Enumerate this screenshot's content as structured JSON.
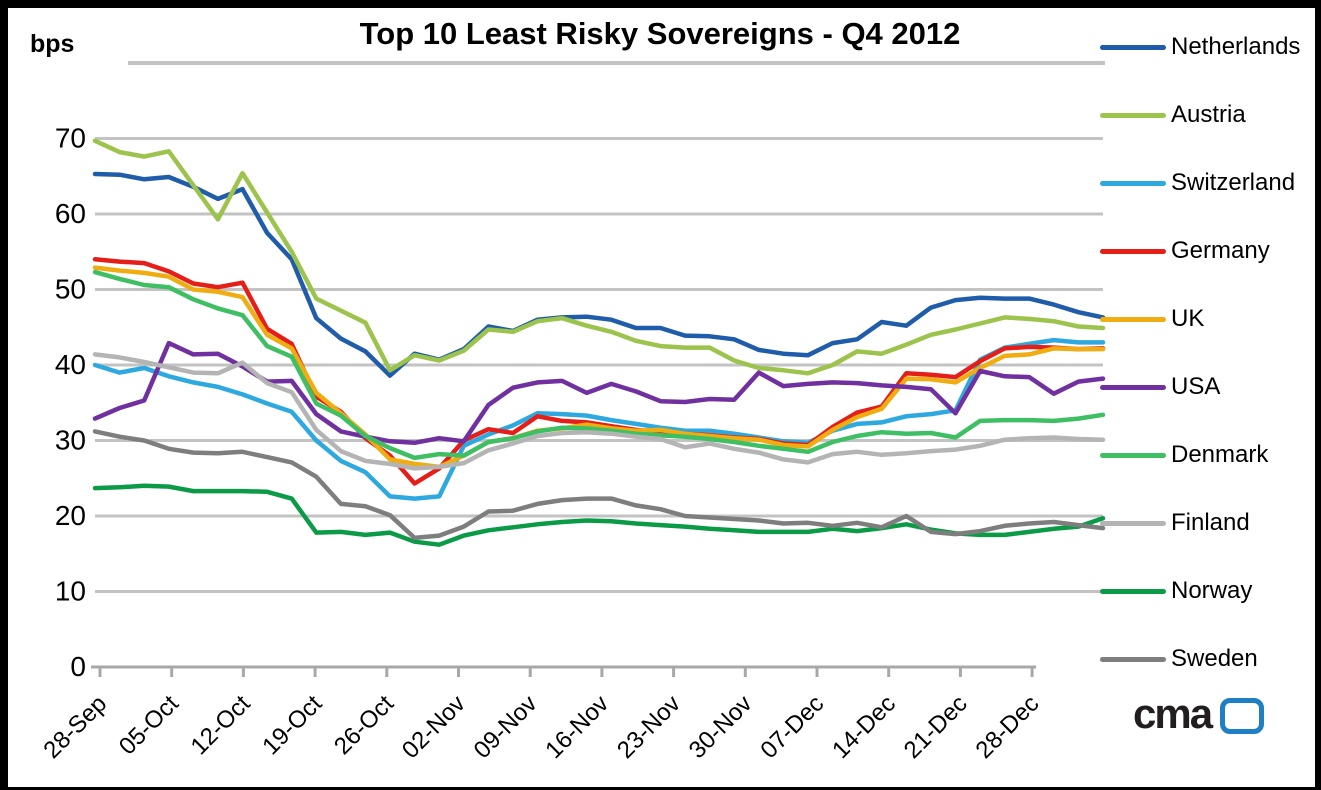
{
  "header": {
    "title": "Top 10 Least Risky Sovereigns - Q4 2012",
    "y_axis_unit": "bps"
  },
  "watermark": {
    "text": "cma",
    "box_color": "#1f7fc4",
    "text_color": "#221e1f"
  },
  "chart_data": {
    "type": "line",
    "title": "Top 10 Least Risky Sovereigns - Q4 2012",
    "ylabel": "bps",
    "xlabel": "",
    "ylim": [
      0,
      70
    ],
    "y_ticks": [
      0,
      10,
      20,
      30,
      40,
      50,
      60,
      70
    ],
    "x_tick_labels": [
      "28-Sep",
      "05-Oct",
      "12-Oct",
      "19-Oct",
      "26-Oct",
      "02-Nov",
      "09-Nov",
      "16-Nov",
      "23-Nov",
      "30-Nov",
      "07-Dec",
      "14-Dec",
      "21-Dec",
      "28-Dec"
    ],
    "grid": true,
    "legend_position": "right",
    "grid_color": "#c3c3c3",
    "axis_color": "#a8a8a8",
    "series": [
      {
        "name": "Netherlands",
        "color": "#1f5ca9",
        "values": [
          65.3,
          65.2,
          64.6,
          64.9,
          63.6,
          62.0,
          63.3,
          57.5,
          54.0,
          46.2,
          43.5,
          41.8,
          38.6,
          41.5,
          40.7,
          42.1,
          45.1,
          44.5,
          46.0,
          46.3,
          46.4,
          46.0,
          44.9,
          44.9,
          43.9,
          43.8,
          43.4,
          42.0,
          41.5,
          41.3,
          42.9,
          43.4,
          45.7,
          45.2,
          47.6,
          48.6,
          48.9,
          48.8,
          48.8,
          48.0,
          47.0,
          46.3
        ]
      },
      {
        "name": "Austria",
        "color": "#9cc34b",
        "values": [
          69.7,
          68.2,
          67.6,
          68.3,
          63.8,
          59.3,
          65.4,
          60.2,
          55.0,
          48.8,
          47.2,
          45.6,
          39.3,
          41.3,
          40.6,
          41.9,
          44.7,
          44.4,
          45.8,
          46.2,
          45.2,
          44.4,
          43.2,
          42.5,
          42.3,
          42.3,
          40.6,
          39.6,
          39.3,
          38.9,
          40.0,
          41.8,
          41.5,
          42.7,
          44.0,
          44.7,
          45.5,
          46.3,
          46.1,
          45.8,
          45.1,
          44.9
        ]
      },
      {
        "name": "Switzerland",
        "color": "#2ea9df",
        "values": [
          40.0,
          39.0,
          39.6,
          38.5,
          37.7,
          37.1,
          36.1,
          34.9,
          33.8,
          30.0,
          27.3,
          25.8,
          22.6,
          22.3,
          22.6,
          29.3,
          30.8,
          32.0,
          33.6,
          33.5,
          33.3,
          32.7,
          32.2,
          31.7,
          31.3,
          31.3,
          30.9,
          30.4,
          29.9,
          29.7,
          31.3,
          32.2,
          32.4,
          33.2,
          33.5,
          34.0,
          40.7,
          42.3,
          42.8,
          43.3,
          43.0,
          43.0
        ]
      },
      {
        "name": "Germany",
        "color": "#e41f1a",
        "values": [
          54.0,
          53.7,
          53.5,
          52.4,
          50.8,
          50.3,
          50.9,
          44.8,
          42.8,
          35.8,
          33.8,
          30.3,
          28.0,
          24.3,
          26.3,
          30.0,
          31.5,
          31.0,
          33.2,
          32.6,
          32.4,
          31.9,
          31.4,
          31.1,
          30.9,
          30.7,
          30.4,
          30.2,
          29.6,
          29.4,
          31.8,
          33.7,
          34.5,
          38.9,
          38.7,
          38.4,
          40.5,
          42.2,
          42.4,
          42.3,
          42.1,
          42.2
        ]
      },
      {
        "name": "UK",
        "color": "#f0ad12",
        "values": [
          52.9,
          52.5,
          52.2,
          51.7,
          50.0,
          49.7,
          49.0,
          44.0,
          42.2,
          36.3,
          33.6,
          30.8,
          27.5,
          26.9,
          26.5,
          28.0,
          29.8,
          30.3,
          31.3,
          31.6,
          32.1,
          31.6,
          31.3,
          31.4,
          30.9,
          30.6,
          30.3,
          30.1,
          29.4,
          29.2,
          31.4,
          33.1,
          34.2,
          38.2,
          38.1,
          37.7,
          39.6,
          41.2,
          41.4,
          42.2,
          42.1,
          42.1
        ]
      },
      {
        "name": "USA",
        "color": "#7030a0",
        "values": [
          32.9,
          34.3,
          35.3,
          42.9,
          41.4,
          41.5,
          39.8,
          37.8,
          37.9,
          33.5,
          31.2,
          30.5,
          29.9,
          29.7,
          30.3,
          29.9,
          34.7,
          37.0,
          37.7,
          37.9,
          36.3,
          37.5,
          36.5,
          35.2,
          35.1,
          35.5,
          35.4,
          39.0,
          37.2,
          37.5,
          37.7,
          37.6,
          37.3,
          37.1,
          36.8,
          33.6,
          39.2,
          38.5,
          38.4,
          36.2,
          37.8,
          38.2
        ]
      },
      {
        "name": "Denmark",
        "color": "#3fbf63",
        "values": [
          52.3,
          51.4,
          50.6,
          50.3,
          48.7,
          47.5,
          46.6,
          42.5,
          41.1,
          34.9,
          33.3,
          30.6,
          29.0,
          27.7,
          28.2,
          28.0,
          29.8,
          30.3,
          31.2,
          31.7,
          31.6,
          31.3,
          30.9,
          30.7,
          30.5,
          30.2,
          29.8,
          29.3,
          28.9,
          28.5,
          29.8,
          30.6,
          31.1,
          30.9,
          31.0,
          30.4,
          32.6,
          32.7,
          32.7,
          32.6,
          32.9,
          33.4
        ]
      },
      {
        "name": "Finland",
        "color": "#b4b4b4",
        "values": [
          41.4,
          41.0,
          40.4,
          39.7,
          39.0,
          38.9,
          40.3,
          37.6,
          36.4,
          31.4,
          28.6,
          27.3,
          26.9,
          26.3,
          26.5,
          27.0,
          28.7,
          29.6,
          30.6,
          31.0,
          31.1,
          30.9,
          30.5,
          30.2,
          29.1,
          29.6,
          28.9,
          28.4,
          27.5,
          27.1,
          28.2,
          28.5,
          28.1,
          28.3,
          28.6,
          28.8,
          29.3,
          30.1,
          30.3,
          30.4,
          30.2,
          30.1
        ]
      },
      {
        "name": "Norway",
        "color": "#0b9b47",
        "values": [
          23.7,
          23.8,
          24.0,
          23.9,
          23.3,
          23.3,
          23.3,
          23.2,
          22.3,
          17.8,
          17.9,
          17.5,
          17.8,
          16.6,
          16.2,
          17.4,
          18.1,
          18.5,
          18.9,
          19.2,
          19.4,
          19.3,
          19.0,
          18.8,
          18.6,
          18.3,
          18.1,
          17.9,
          17.9,
          17.9,
          18.3,
          18.0,
          18.4,
          18.9,
          18.2,
          17.7,
          17.5,
          17.5,
          17.9,
          18.3,
          18.6,
          19.7
        ]
      },
      {
        "name": "Sweden",
        "color": "#7e7e7e",
        "values": [
          31.2,
          30.5,
          30.0,
          28.9,
          28.4,
          28.3,
          28.5,
          27.8,
          27.1,
          25.2,
          21.6,
          21.3,
          20.1,
          17.1,
          17.4,
          18.6,
          20.6,
          20.7,
          21.6,
          22.1,
          22.3,
          22.3,
          21.4,
          20.9,
          20.0,
          19.8,
          19.6,
          19.4,
          19.0,
          19.1,
          18.7,
          19.1,
          18.5,
          20.0,
          17.9,
          17.6,
          18.0,
          18.7,
          19.0,
          19.2,
          18.8,
          18.4
        ]
      }
    ]
  }
}
